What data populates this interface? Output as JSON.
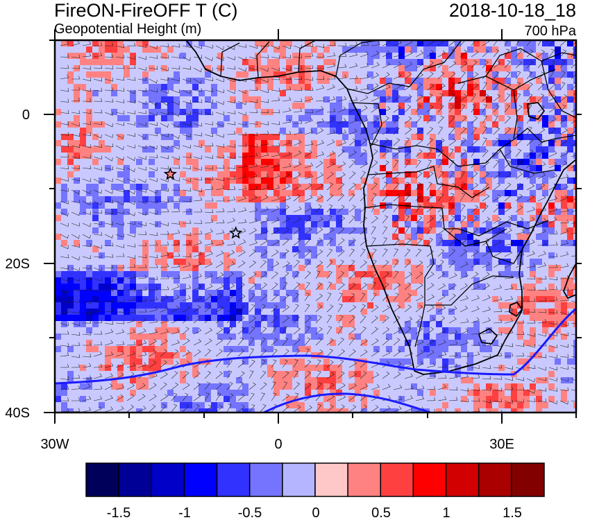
{
  "header": {
    "title_left": "FireON-FireOFF T (C)",
    "subtitle_left": "Geopotential Height (m)",
    "title_right": "2018-10-18_18",
    "subtitle_right": "700 hPa"
  },
  "map": {
    "lon_range": [
      -30,
      40
    ],
    "lat_range": [
      -40,
      10
    ],
    "x_ticks": [
      "30W",
      "0",
      "30E"
    ],
    "y_ticks": [
      "0",
      "20S",
      "40S"
    ],
    "markers": [
      {
        "lon": -14.5,
        "lat": -8.0,
        "symbol": "star"
      },
      {
        "lon": -5.7,
        "lat": -15.9,
        "symbol": "star"
      }
    ]
  },
  "colorbar": {
    "colors": [
      "#00005a",
      "#000096",
      "#0000c8",
      "#0000ff",
      "#3232ff",
      "#7474ff",
      "#b4b4ff",
      "#ffc8c8",
      "#ff8282",
      "#ff4040",
      "#ff0000",
      "#d20000",
      "#aa0000",
      "#820000"
    ],
    "labels": [
      "-1.5",
      "-1",
      "-0.5",
      "0",
      "0.5",
      "1",
      "1.5"
    ]
  }
}
